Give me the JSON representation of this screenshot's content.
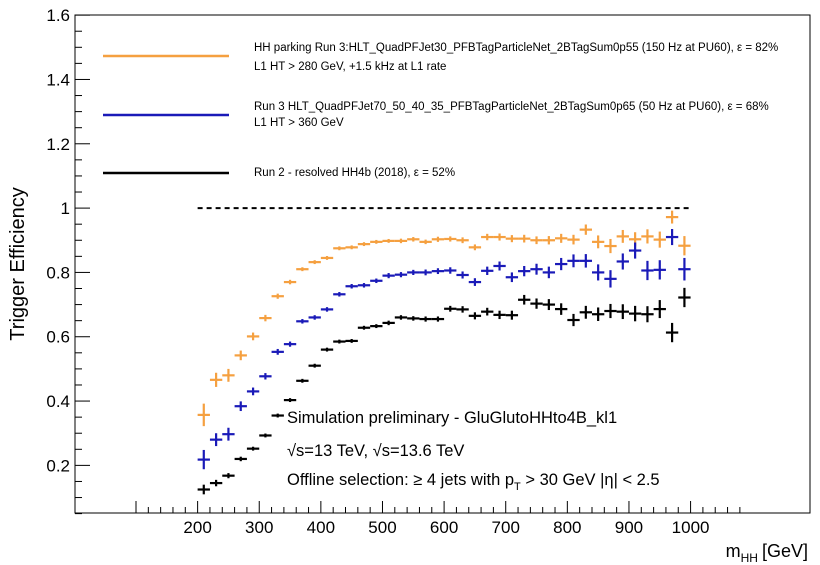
{
  "chart_data": {
    "type": "scatter",
    "title": "",
    "xlabel": "m",
    "xlabel_sub": "HH",
    "xlabel_unit": "[GeV]",
    "ylabel": "Trigger Efficiency",
    "xlim": [
      80,
      1090
    ],
    "ylim": [
      0,
      1.6
    ],
    "x_ticks": [
      200,
      300,
      400,
      500,
      600,
      700,
      800,
      900,
      1000
    ],
    "y_ticks": [
      0.2,
      0.4,
      0.6,
      0.8,
      1,
      1.2,
      1.4,
      1.6
    ],
    "reference_line": {
      "y": 1.0,
      "x": [
        200,
        1000
      ],
      "style": "dashed"
    },
    "legend_position": "top",
    "series": [
      {
        "name": "HH parking Run 3:HLT_QuadPFJet30_PFBTagParticleNet_2BTagSum0p55 (150 Hz at PU60), ε = 82%",
        "name_line2": "L1 HT > 280 GeV, +1.5 kHz at L1 rate",
        "color": "#f5a040",
        "points": [
          [
            210,
            0.357,
            10,
            0.035
          ],
          [
            230,
            0.466,
            10,
            0.022
          ],
          [
            250,
            0.48,
            10,
            0.02
          ],
          [
            270,
            0.542,
            10,
            0.015
          ],
          [
            290,
            0.601,
            10,
            0.012
          ],
          [
            310,
            0.658,
            10,
            0.01
          ],
          [
            330,
            0.726,
            10,
            0.008
          ],
          [
            350,
            0.77,
            10,
            0.007
          ],
          [
            370,
            0.81,
            10,
            0.006
          ],
          [
            390,
            0.832,
            10,
            0.006
          ],
          [
            410,
            0.845,
            10,
            0.006
          ],
          [
            430,
            0.875,
            10,
            0.006
          ],
          [
            450,
            0.878,
            10,
            0.006
          ],
          [
            470,
            0.888,
            10,
            0.006
          ],
          [
            490,
            0.895,
            10,
            0.006
          ],
          [
            510,
            0.898,
            10,
            0.006
          ],
          [
            530,
            0.898,
            10,
            0.007
          ],
          [
            550,
            0.903,
            10,
            0.007
          ],
          [
            570,
            0.895,
            10,
            0.007
          ],
          [
            590,
            0.903,
            10,
            0.008
          ],
          [
            610,
            0.904,
            10,
            0.008
          ],
          [
            630,
            0.9,
            10,
            0.009
          ],
          [
            650,
            0.878,
            10,
            0.009
          ],
          [
            670,
            0.91,
            10,
            0.01
          ],
          [
            690,
            0.91,
            10,
            0.011
          ],
          [
            710,
            0.905,
            10,
            0.011
          ],
          [
            730,
            0.905,
            10,
            0.012
          ],
          [
            750,
            0.9,
            10,
            0.012
          ],
          [
            770,
            0.9,
            10,
            0.013
          ],
          [
            790,
            0.906,
            10,
            0.014
          ],
          [
            810,
            0.902,
            10,
            0.015
          ],
          [
            830,
            0.933,
            10,
            0.016
          ],
          [
            850,
            0.895,
            10,
            0.02
          ],
          [
            870,
            0.882,
            10,
            0.022
          ],
          [
            890,
            0.912,
            10,
            0.02
          ],
          [
            910,
            0.903,
            10,
            0.022
          ],
          [
            930,
            0.912,
            10,
            0.022
          ],
          [
            950,
            0.902,
            10,
            0.025
          ],
          [
            970,
            0.972,
            10,
            0.02
          ],
          [
            990,
            0.883,
            10,
            0.03
          ]
        ]
      },
      {
        "name": "Run 3 HLT_QuadPFJet70_50_40_35_PFBTagParticleNet_2BTagSum0p65 (50 Hz at PU60), ε = 68%",
        "name_line2": "L1 HT > 360 GeV",
        "color": "#1a1ab8",
        "points": [
          [
            210,
            0.218,
            10,
            0.03
          ],
          [
            230,
            0.28,
            10,
            0.02
          ],
          [
            250,
            0.297,
            10,
            0.02
          ],
          [
            270,
            0.384,
            10,
            0.015
          ],
          [
            290,
            0.43,
            10,
            0.012
          ],
          [
            310,
            0.477,
            10,
            0.01
          ],
          [
            330,
            0.553,
            10,
            0.009
          ],
          [
            350,
            0.577,
            10,
            0.008
          ],
          [
            370,
            0.648,
            10,
            0.007
          ],
          [
            390,
            0.66,
            10,
            0.007
          ],
          [
            410,
            0.685,
            10,
            0.007
          ],
          [
            430,
            0.732,
            10,
            0.007
          ],
          [
            450,
            0.757,
            10,
            0.007
          ],
          [
            470,
            0.76,
            10,
            0.007
          ],
          [
            490,
            0.774,
            10,
            0.007
          ],
          [
            510,
            0.79,
            10,
            0.008
          ],
          [
            530,
            0.793,
            10,
            0.008
          ],
          [
            550,
            0.8,
            10,
            0.008
          ],
          [
            570,
            0.8,
            10,
            0.009
          ],
          [
            590,
            0.804,
            10,
            0.009
          ],
          [
            610,
            0.806,
            10,
            0.01
          ],
          [
            630,
            0.792,
            10,
            0.011
          ],
          [
            650,
            0.77,
            10,
            0.012
          ],
          [
            670,
            0.805,
            10,
            0.013
          ],
          [
            690,
            0.82,
            10,
            0.014
          ],
          [
            710,
            0.785,
            10,
            0.015
          ],
          [
            730,
            0.804,
            10,
            0.016
          ],
          [
            750,
            0.81,
            10,
            0.017
          ],
          [
            770,
            0.8,
            10,
            0.018
          ],
          [
            790,
            0.826,
            10,
            0.019
          ],
          [
            810,
            0.836,
            10,
            0.02
          ],
          [
            830,
            0.836,
            10,
            0.021
          ],
          [
            850,
            0.8,
            10,
            0.025
          ],
          [
            870,
            0.78,
            10,
            0.027
          ],
          [
            890,
            0.834,
            10,
            0.025
          ],
          [
            910,
            0.868,
            10,
            0.025
          ],
          [
            930,
            0.806,
            10,
            0.03
          ],
          [
            950,
            0.808,
            10,
            0.03
          ],
          [
            970,
            0.91,
            10,
            0.025
          ],
          [
            990,
            0.81,
            10,
            0.035
          ]
        ]
      },
      {
        "name": "Run 2 - resolved HH4b (2018), ε = 52%",
        "name_line2": "",
        "color": "#000000",
        "points": [
          [
            210,
            0.125,
            10,
            0.015
          ],
          [
            230,
            0.145,
            10,
            0.01
          ],
          [
            250,
            0.168,
            10,
            0.008
          ],
          [
            270,
            0.22,
            10,
            0.007
          ],
          [
            290,
            0.252,
            10,
            0.006
          ],
          [
            310,
            0.293,
            10,
            0.006
          ],
          [
            330,
            0.355,
            10,
            0.006
          ],
          [
            350,
            0.403,
            10,
            0.006
          ],
          [
            370,
            0.463,
            10,
            0.006
          ],
          [
            390,
            0.51,
            10,
            0.006
          ],
          [
            410,
            0.56,
            10,
            0.006
          ],
          [
            430,
            0.585,
            10,
            0.006
          ],
          [
            450,
            0.587,
            10,
            0.006
          ],
          [
            470,
            0.628,
            10,
            0.006
          ],
          [
            490,
            0.633,
            10,
            0.006
          ],
          [
            510,
            0.643,
            10,
            0.007
          ],
          [
            530,
            0.66,
            10,
            0.007
          ],
          [
            550,
            0.657,
            10,
            0.007
          ],
          [
            570,
            0.655,
            10,
            0.008
          ],
          [
            590,
            0.655,
            10,
            0.008
          ],
          [
            610,
            0.687,
            10,
            0.009
          ],
          [
            630,
            0.685,
            10,
            0.01
          ],
          [
            650,
            0.665,
            10,
            0.011
          ],
          [
            670,
            0.678,
            10,
            0.012
          ],
          [
            690,
            0.668,
            10,
            0.013
          ],
          [
            710,
            0.667,
            10,
            0.014
          ],
          [
            730,
            0.715,
            10,
            0.015
          ],
          [
            750,
            0.703,
            10,
            0.016
          ],
          [
            770,
            0.7,
            10,
            0.017
          ],
          [
            790,
            0.686,
            10,
            0.018
          ],
          [
            810,
            0.652,
            10,
            0.019
          ],
          [
            830,
            0.676,
            10,
            0.02
          ],
          [
            850,
            0.67,
            10,
            0.021
          ],
          [
            870,
            0.68,
            10,
            0.022
          ],
          [
            890,
            0.678,
            10,
            0.023
          ],
          [
            910,
            0.672,
            10,
            0.024
          ],
          [
            930,
            0.67,
            10,
            0.025
          ],
          [
            950,
            0.686,
            10,
            0.028
          ],
          [
            970,
            0.613,
            10,
            0.03
          ],
          [
            990,
            0.722,
            10,
            0.03
          ]
        ]
      }
    ],
    "annotations": {
      "line1": "Simulation preliminary - GluGlutoHHto4B_kl1",
      "line2": "√s=13 TeV, √s=13.6 TeV",
      "line3_pre": "Offline selection: ≥ 4 jets with p",
      "line3_sub": "T",
      "line3_post": " > 30 GeV |η| < 2.5"
    }
  }
}
